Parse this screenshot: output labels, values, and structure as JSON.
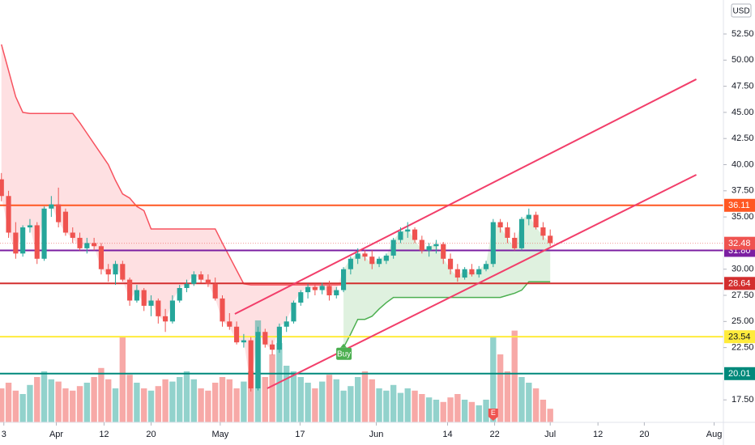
{
  "chart_data": {
    "type": "candlestick",
    "currency": "USD",
    "ylim": [
      15.35,
      55.75
    ],
    "yticks": [
      {
        "value": 17.5,
        "label": "17.50"
      },
      {
        "value": 22.5,
        "label": "22.50"
      },
      {
        "value": 25,
        "label": "25.00"
      },
      {
        "value": 27.5,
        "label": "27.50"
      },
      {
        "value": 30,
        "label": "30.00"
      },
      {
        "value": 35,
        "label": "35.00"
      },
      {
        "value": 37.5,
        "label": "37.50"
      },
      {
        "value": 40,
        "label": "40.00"
      },
      {
        "value": 42.5,
        "label": "42.50"
      },
      {
        "value": 45,
        "label": "45.00"
      },
      {
        "value": 47.5,
        "label": "47.50"
      },
      {
        "value": 50,
        "label": "50.00"
      },
      {
        "value": 52.5,
        "label": "52.50"
      }
    ],
    "xlim": [
      -0.2,
      101.3
    ],
    "xticks": [
      {
        "value": 0.34,
        "label": "3"
      },
      {
        "value": 7.7,
        "label": "Apr"
      },
      {
        "value": 14.4,
        "label": "12"
      },
      {
        "value": 21,
        "label": "20"
      },
      {
        "value": 30.7,
        "label": "May"
      },
      {
        "value": 41.9,
        "label": "17"
      },
      {
        "value": 52.6,
        "label": "Jun"
      },
      {
        "value": 62.6,
        "label": "14"
      },
      {
        "value": 69.2,
        "label": "22"
      },
      {
        "value": 77,
        "label": "Jul"
      },
      {
        "value": 83.7,
        "label": "12"
      },
      {
        "value": 90.2,
        "label": "20"
      },
      {
        "value": 100,
        "label": "Aug"
      }
    ],
    "up_color": "#26a69a",
    "down_color": "#ef5350",
    "candles": [
      [
        38.6,
        39.2,
        36.5,
        37.0
      ],
      [
        37.0,
        37.5,
        33.0,
        33.5
      ],
      [
        33.5,
        34.5,
        31.0,
        31.5
      ],
      [
        31.5,
        34.2,
        31.2,
        34.0
      ],
      [
        34.0,
        34.8,
        33.5,
        34.2
      ],
      [
        34.2,
        34.5,
        30.5,
        31.0
      ],
      [
        31.0,
        36.0,
        30.8,
        35.8
      ],
      [
        35.8,
        37.0,
        35.0,
        36.2
      ],
      [
        36.2,
        37.8,
        34.0,
        34.5
      ],
      [
        35.5,
        35.8,
        33.2,
        33.5
      ],
      [
        33.5,
        34.0,
        32.5,
        33.0
      ],
      [
        33.0,
        33.5,
        31.8,
        32.0
      ],
      [
        32.0,
        33.0,
        31.5,
        32.5
      ],
      [
        32.5,
        33.0,
        31.8,
        32.2
      ],
      [
        32.2,
        32.5,
        29.5,
        30.0
      ],
      [
        30.0,
        30.5,
        28.8,
        29.5
      ],
      [
        29.5,
        30.8,
        28.5,
        30.5
      ],
      [
        30.5,
        30.8,
        28.8,
        29.0
      ],
      [
        29.0,
        29.2,
        26.5,
        27.0
      ],
      [
        27.0,
        28.5,
        26.8,
        28.0
      ],
      [
        28.0,
        28.2,
        26.0,
        26.5
      ],
      [
        26.5,
        27.5,
        25.5,
        27.0
      ],
      [
        27.0,
        27.2,
        24.8,
        25.5
      ],
      [
        25.5,
        26.2,
        24.0,
        25.0
      ],
      [
        25.0,
        27.5,
        24.8,
        27.0
      ],
      [
        27.0,
        28.5,
        26.8,
        28.2
      ],
      [
        28.2,
        29.0,
        27.8,
        28.6
      ],
      [
        28.6,
        29.8,
        28.4,
        29.5
      ],
      [
        29.5,
        29.8,
        28.7,
        29.0
      ],
      [
        29.0,
        29.5,
        28.3,
        28.6
      ],
      [
        28.6,
        29.2,
        27.0,
        27.2
      ],
      [
        27.2,
        27.5,
        24.5,
        25.0
      ],
      [
        25.0,
        25.8,
        24.2,
        24.5
      ],
      [
        24.5,
        25.0,
        22.8,
        23.0
      ],
      [
        23.0,
        23.8,
        22.5,
        23.2
      ],
      [
        23.2,
        23.5,
        18.3,
        18.6
      ],
      [
        18.6,
        24.5,
        18.4,
        24.0
      ],
      [
        24.0,
        24.3,
        22.5,
        22.8
      ],
      [
        22.8,
        23.2,
        21.8,
        22.3
      ],
      [
        22.3,
        24.8,
        22.0,
        24.5
      ],
      [
        24.5,
        25.5,
        24.0,
        25.0
      ],
      [
        25.0,
        27.0,
        24.8,
        26.8
      ],
      [
        26.8,
        28.0,
        26.5,
        27.8
      ],
      [
        27.8,
        28.6,
        27.2,
        28.3
      ],
      [
        28.3,
        28.6,
        27.5,
        28.0
      ],
      [
        28.0,
        28.7,
        27.6,
        28.4
      ],
      [
        28.4,
        28.9,
        27.0,
        27.5
      ],
      [
        27.5,
        28.3,
        27.2,
        28.0
      ],
      [
        28.0,
        30.2,
        27.8,
        30.0
      ],
      [
        30.0,
        31.2,
        29.5,
        31.0
      ],
      [
        31.0,
        32.0,
        30.5,
        31.5
      ],
      [
        31.5,
        31.8,
        30.8,
        31.2
      ],
      [
        31.2,
        31.8,
        30.0,
        30.5
      ],
      [
        30.5,
        31.2,
        30.2,
        31.0
      ],
      [
        30.8,
        31.5,
        30.5,
        31.3
      ],
      [
        31.3,
        33.0,
        31.0,
        32.8
      ],
      [
        32.8,
        34.0,
        32.5,
        33.6
      ],
      [
        33.6,
        34.5,
        33.0,
        33.8
      ],
      [
        33.8,
        34.0,
        32.5,
        32.8
      ],
      [
        32.8,
        33.2,
        31.5,
        31.8
      ],
      [
        31.8,
        32.5,
        31.2,
        32.2
      ],
      [
        32.2,
        32.8,
        31.5,
        32.4
      ],
      [
        32.4,
        32.6,
        30.5,
        31.0
      ],
      [
        31.0,
        31.5,
        29.5,
        30.0
      ],
      [
        30.0,
        30.5,
        28.8,
        29.2
      ],
      [
        29.2,
        30.2,
        29.0,
        30.0
      ],
      [
        30.0,
        30.5,
        29.3,
        29.5
      ],
      [
        29.5,
        30.3,
        29.2,
        30.0
      ],
      [
        30.0,
        30.8,
        29.8,
        30.5
      ],
      [
        30.5,
        34.8,
        30.2,
        34.5
      ],
      [
        34.5,
        34.8,
        33.5,
        34.0
      ],
      [
        34.0,
        34.5,
        32.5,
        33.0
      ],
      [
        33.0,
        33.5,
        31.8,
        32.0
      ],
      [
        32.0,
        35.0,
        31.8,
        34.8
      ],
      [
        34.8,
        35.8,
        34.2,
        35.2
      ],
      [
        35.2,
        35.5,
        33.8,
        34.0
      ],
      [
        34.0,
        34.5,
        32.8,
        33.2
      ],
      [
        33.2,
        33.8,
        32.2,
        32.5
      ]
    ],
    "vlim": [
      0,
      100
    ],
    "volumes": [
      30,
      35,
      28,
      25,
      33,
      40,
      45,
      38,
      36,
      30,
      28,
      32,
      35,
      40,
      48,
      38,
      30,
      76,
      42,
      35,
      30,
      28,
      32,
      38,
      36,
      40,
      45,
      38,
      30,
      28,
      35,
      40,
      38,
      30,
      36,
      45,
      90,
      40,
      60,
      70,
      50,
      45,
      40,
      35,
      30,
      36,
      42,
      38,
      28,
      32,
      40,
      45,
      38,
      30,
      28,
      33,
      26,
      30,
      28,
      25,
      22,
      20,
      18,
      22,
      25,
      20,
      18,
      15,
      20,
      76,
      60,
      45,
      81,
      40,
      35,
      30,
      20,
      12
    ],
    "trail_down": [
      51.5,
      49,
      46.5,
      45,
      44.9,
      44.9,
      44.9,
      44.9,
      44.9,
      44.9,
      44.9,
      44,
      43,
      42,
      41,
      40,
      38.5,
      37.2,
      36.8,
      36,
      35.6,
      33.85,
      33.85,
      33.85,
      33.85,
      33.85,
      33.85,
      33.85,
      33.85,
      33.85,
      33.85,
      32.5,
      31.2,
      29.9,
      28.6,
      28.5,
      28.5,
      28.5,
      28.5,
      28.5,
      28.5,
      28.5,
      28.5,
      28.5,
      28.5,
      28.5,
      28.5,
      28.5,
      28.5,
      null,
      null,
      null,
      null,
      null,
      null,
      null,
      null,
      null,
      null,
      null,
      null,
      null,
      null,
      null,
      null,
      null,
      null,
      null,
      null,
      null,
      null,
      null,
      null,
      null,
      null,
      null,
      null,
      null
    ],
    "trail_up": [
      null,
      null,
      null,
      null,
      null,
      null,
      null,
      null,
      null,
      null,
      null,
      null,
      null,
      null,
      null,
      null,
      null,
      null,
      null,
      null,
      null,
      null,
      null,
      null,
      null,
      null,
      null,
      null,
      null,
      null,
      null,
      null,
      null,
      null,
      null,
      null,
      null,
      null,
      null,
      null,
      null,
      null,
      null,
      null,
      null,
      null,
      null,
      null,
      22.5,
      23.8,
      25.2,
      25.2,
      25.5,
      26.2,
      26.8,
      27.3,
      27.3,
      27.3,
      27.3,
      27.3,
      27.3,
      27.3,
      27.3,
      27.3,
      27.3,
      27.3,
      27.3,
      27.3,
      27.3,
      27.3,
      27.3,
      27.5,
      27.7,
      28.0,
      28.8,
      28.8,
      28.8,
      28.8
    ],
    "trail_down_color": "#f7525f",
    "trail_up_color": "#4caf50",
    "channel_color": "#f23e6a",
    "channels": [
      {
        "x": [
          32.75,
          97.5
        ],
        "y": [
          25.72,
          48.17
        ]
      },
      {
        "x": [
          37.3,
          97.5
        ],
        "y": [
          18.6,
          39.03
        ]
      }
    ],
    "levels": {
      "values": [
        36.11,
        31.8,
        28.64,
        23.54,
        20.01
      ],
      "value_labels": [
        "36.11",
        "31.80",
        "28.64",
        "23.54",
        "20.01"
      ],
      "colors": [
        "#ff5722",
        "#7b1fa2",
        "#d32f2f",
        "#ffeb3b",
        "#00897b"
      ],
      "text_colors": [
        "#ffffff",
        "#ffffff",
        "#ffffff",
        "#131722",
        "#ffffff"
      ]
    },
    "last_price": 32.48,
    "last_price_color": "#ef5350",
    "signal": {
      "text": "Buy",
      "index": 48,
      "price": 22.8,
      "color": "#4caf50"
    },
    "earnings": {
      "text": "E",
      "index": 69,
      "color": "#ef5350"
    }
  }
}
